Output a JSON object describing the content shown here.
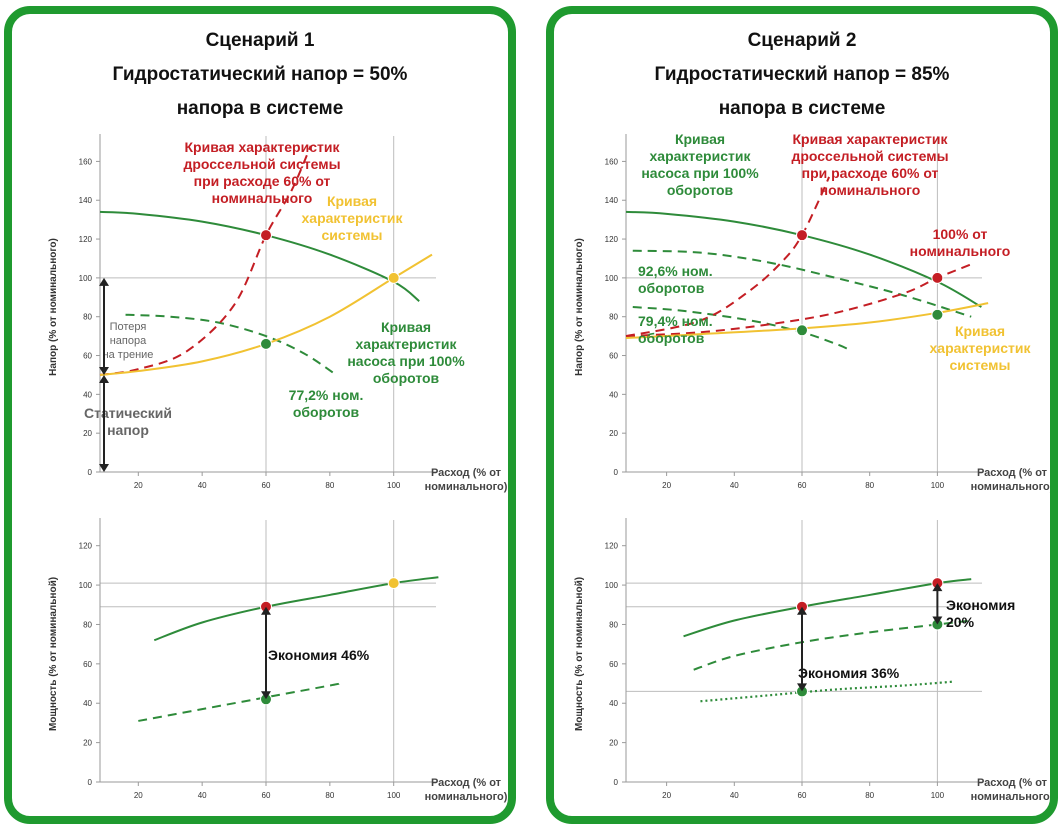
{
  "colors": {
    "frame": "#1f9a2f",
    "pump": "#2e8b3a",
    "throttle": "#c41e24",
    "system": "#f1c232",
    "grid": "#bdbdbd",
    "annotation": "#666666"
  },
  "scenarios": [
    {
      "title1": "Сценарий 1",
      "title2": "Гидростатический напор = 50%",
      "title3": "напора в системе"
    },
    {
      "title1": "Сценарий 2",
      "title2": "Гидростатический напор = 85%",
      "title3": "напора в системе"
    }
  ],
  "chart_data": [
    {
      "type": "line",
      "name": "scenario1-head",
      "ylabel": "Напор (% от номинального)",
      "xlabel": "Расход (% от номинального)",
      "xlim": [
        8,
        112
      ],
      "ylim": [
        0,
        170
      ],
      "xticks": [
        "20",
        "40",
        "60",
        "80",
        "100"
      ],
      "yticks": [
        "0",
        "20",
        "40",
        "60",
        "80",
        "100",
        "120",
        "140",
        "160"
      ],
      "hlines": [
        100
      ],
      "vlines": [
        60,
        100
      ],
      "series": [
        {
          "role": "pump100",
          "style": "solid",
          "color": "#2e8b3a",
          "x": [
            8,
            20,
            40,
            60,
            80,
            100,
            108
          ],
          "y": [
            134,
            133,
            129,
            122,
            112,
            98,
            88
          ]
        },
        {
          "role": "pump772",
          "style": "dashed",
          "color": "#2e8b3a",
          "x": [
            16,
            30,
            45,
            60,
            72,
            82
          ],
          "y": [
            81,
            80,
            77,
            70,
            61,
            50
          ]
        },
        {
          "role": "throttle",
          "style": "dashed",
          "color": "#c41e24",
          "x": [
            8,
            20,
            35,
            50,
            60,
            68,
            74
          ],
          "y": [
            50,
            53,
            62,
            86,
            122,
            145,
            168
          ]
        },
        {
          "role": "system",
          "style": "solid",
          "color": "#f1c232",
          "x": [
            8,
            20,
            40,
            60,
            80,
            100,
            112
          ],
          "y": [
            50,
            52,
            57,
            66,
            80,
            100,
            112
          ]
        }
      ],
      "points": [
        {
          "x": 60,
          "y": 122,
          "color": "#c41e24"
        },
        {
          "x": 100,
          "y": 100,
          "color": "#f1c232"
        },
        {
          "x": 60,
          "y": 66,
          "color": "#2e8b3a"
        }
      ],
      "annotations": [
        {
          "text": [
            "Кривая характеристик",
            "дроссельной системы",
            "при расходе 60% от",
            "номинального"
          ],
          "color": "#c41e24"
        },
        {
          "text": [
            "Кривая",
            "характеристик",
            "системы"
          ],
          "color": "#f1c232"
        },
        {
          "text": [
            "Кривая",
            "характеристик",
            "насоса при 100%",
            "оборотов"
          ],
          "color": "#2e8b3a"
        },
        {
          "text": [
            "77,2% ном.",
            "оборотов"
          ],
          "color": "#2e8b3a"
        },
        {
          "text": [
            "Потеря",
            "напора",
            "на трение"
          ],
          "color": "#666666"
        },
        {
          "text": [
            "Статический",
            "напор"
          ],
          "color": "#666666"
        }
      ]
    },
    {
      "type": "line",
      "name": "scenario1-power",
      "ylabel": "Мощность (% от номинальной)",
      "xlabel": "Расход (% от номинального)",
      "xlim": [
        8,
        112
      ],
      "ylim": [
        0,
        130
      ],
      "xticks": [
        "20",
        "40",
        "60",
        "80",
        "100"
      ],
      "yticks": [
        "0",
        "20",
        "40",
        "60",
        "80",
        "100",
        "120"
      ],
      "hlines": [
        101,
        89
      ],
      "vlines": [
        60,
        100
      ],
      "series": [
        {
          "role": "throttle-power",
          "style": "solid",
          "color": "#2e8b3a",
          "x": [
            25,
            40,
            60,
            80,
            100,
            114
          ],
          "y": [
            72,
            81,
            89,
            95,
            101,
            104
          ]
        },
        {
          "role": "vfd-power",
          "style": "dashed",
          "color": "#2e8b3a",
          "x": [
            20,
            40,
            60,
            80,
            83
          ],
          "y": [
            31,
            37,
            43,
            49,
            50
          ]
        }
      ],
      "points": [
        {
          "x": 60,
          "y": 89,
          "color": "#c41e24"
        },
        {
          "x": 100,
          "y": 101,
          "color": "#f1c232"
        },
        {
          "x": 60,
          "y": 42,
          "color": "#2e8b3a"
        }
      ],
      "annotations": [
        {
          "text": [
            "Экономия 46%"
          ],
          "color": "#111111"
        }
      ]
    },
    {
      "type": "line",
      "name": "scenario2-head",
      "ylabel": "Напор (% от номинального)",
      "xlabel": "Расход (% от номинального)",
      "xlim": [
        8,
        112
      ],
      "ylim": [
        0,
        170
      ],
      "xticks": [
        "20",
        "40",
        "60",
        "80",
        "100"
      ],
      "yticks": [
        "0",
        "20",
        "40",
        "60",
        "80",
        "100",
        "120",
        "140",
        "160"
      ],
      "hlines": [
        100
      ],
      "vlines": [
        60,
        100
      ],
      "series": [
        {
          "role": "pump100",
          "style": "solid",
          "color": "#2e8b3a",
          "x": [
            8,
            20,
            40,
            60,
            80,
            100,
            113
          ],
          "y": [
            134,
            133,
            129,
            122,
            112,
            98,
            85
          ]
        },
        {
          "role": "pump926",
          "style": "dashed",
          "color": "#2e8b3a",
          "x": [
            10,
            30,
            50,
            70,
            90,
            110
          ],
          "y": [
            114,
            113,
            108,
            100,
            91,
            80
          ]
        },
        {
          "role": "pump794",
          "style": "dashed",
          "color": "#2e8b3a",
          "x": [
            10,
            25,
            45,
            60,
            70,
            74
          ],
          "y": [
            85,
            83,
            78,
            72,
            66,
            63
          ]
        },
        {
          "role": "throttle60",
          "style": "dashed",
          "color": "#c41e24",
          "x": [
            8,
            30,
            45,
            55,
            60,
            65,
            68
          ],
          "y": [
            70,
            78,
            94,
            110,
            122,
            140,
            152
          ]
        },
        {
          "role": "throttle100",
          "style": "dashed",
          "color": "#c41e24",
          "x": [
            8,
            30,
            50,
            70,
            90,
            100,
            110
          ],
          "y": [
            70,
            72,
            76,
            82,
            92,
            100,
            107
          ]
        },
        {
          "role": "system",
          "style": "solid",
          "color": "#f1c232",
          "x": [
            8,
            30,
            60,
            80,
            100,
            115
          ],
          "y": [
            69,
            71,
            74,
            77,
            82,
            87
          ]
        }
      ],
      "points": [
        {
          "x": 60,
          "y": 122,
          "color": "#c41e24"
        },
        {
          "x": 100,
          "y": 100,
          "color": "#c41e24"
        },
        {
          "x": 60,
          "y": 73,
          "color": "#2e8b3a"
        },
        {
          "x": 100,
          "y": 81,
          "color": "#2e8b3a"
        }
      ],
      "annotations": [
        {
          "text": [
            "Кривая",
            "характеристик",
            "насоса при 100%",
            "оборотов"
          ],
          "color": "#2e8b3a"
        },
        {
          "text": [
            "Кривая характеристик",
            "дроссельной системы",
            "при расходе 60% от",
            "номинального"
          ],
          "color": "#c41e24"
        },
        {
          "text": [
            "100% от",
            "номинального"
          ],
          "color": "#c41e24"
        },
        {
          "text": [
            "92,6% ном.",
            "оборотов"
          ],
          "color": "#2e8b3a"
        },
        {
          "text": [
            "79,4%  ном.",
            "оборотов"
          ],
          "color": "#2e8b3a"
        },
        {
          "text": [
            "Кривая",
            "характеристик",
            "системы"
          ],
          "color": "#f1c232"
        }
      ]
    },
    {
      "type": "line",
      "name": "scenario2-power",
      "ylabel": "Мощность (% от номинальной)",
      "xlabel": "Расход (% от номинального)",
      "xlim": [
        8,
        112
      ],
      "ylim": [
        0,
        130
      ],
      "xticks": [
        "20",
        "40",
        "60",
        "80",
        "100"
      ],
      "yticks": [
        "0",
        "20",
        "40",
        "60",
        "80",
        "100",
        "120"
      ],
      "hlines": [
        101,
        89,
        46
      ],
      "vlines": [
        60,
        100
      ],
      "series": [
        {
          "role": "throttle-power",
          "style": "solid",
          "color": "#2e8b3a",
          "x": [
            25,
            40,
            60,
            80,
            100,
            110
          ],
          "y": [
            74,
            82,
            89,
            95,
            101,
            103
          ]
        },
        {
          "role": "vfd-power-100",
          "style": "dashed",
          "color": "#2e8b3a",
          "x": [
            28,
            40,
            60,
            80,
            100,
            110
          ],
          "y": [
            57,
            64,
            71,
            76,
            80,
            82
          ]
        },
        {
          "role": "vfd-power-60",
          "style": "dotted",
          "color": "#2e8b3a",
          "x": [
            30,
            50,
            70,
            90,
            105
          ],
          "y": [
            41,
            44,
            47,
            49,
            51
          ]
        }
      ],
      "points": [
        {
          "x": 60,
          "y": 89,
          "color": "#c41e24"
        },
        {
          "x": 100,
          "y": 101,
          "color": "#c41e24"
        },
        {
          "x": 60,
          "y": 46,
          "color": "#2e8b3a"
        },
        {
          "x": 100,
          "y": 80,
          "color": "#2e8b3a"
        }
      ],
      "annotations": [
        {
          "text": [
            "Экономия",
            "20%"
          ],
          "color": "#111111"
        },
        {
          "text": [
            "Экономия 36%"
          ],
          "color": "#111111"
        }
      ]
    }
  ]
}
